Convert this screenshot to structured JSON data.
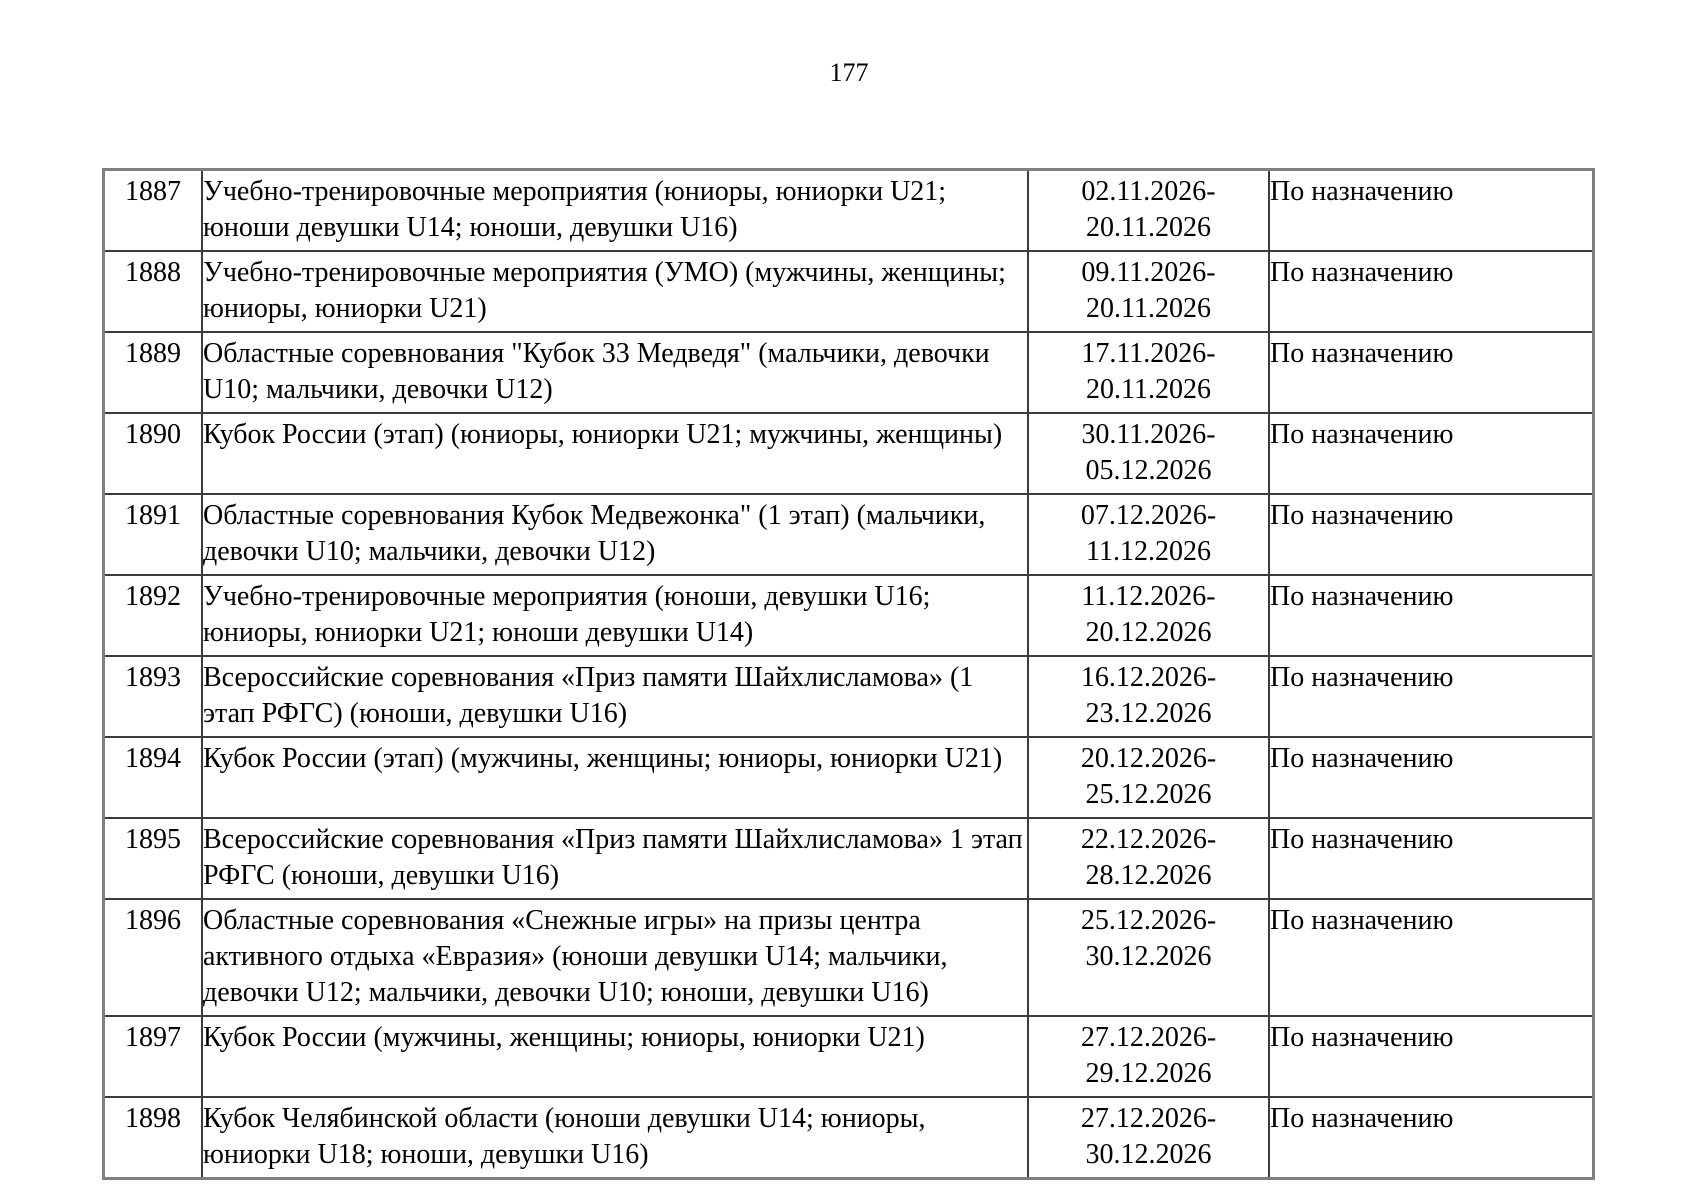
{
  "page": {
    "number": "177"
  },
  "table": {
    "rows": [
      {
        "number": "1887",
        "event": "Учебно-тренировочные мероприятия (юниоры, юниорки U21; юноши девушки U14; юноши, девушки U16)",
        "date_start": "02.11.2026-",
        "date_end": "20.11.2026",
        "location": "По назначению"
      },
      {
        "number": "1888",
        "event": "Учебно-тренировочные мероприятия (УМО) (мужчины, женщины; юниоры, юниорки U21)",
        "date_start": "09.11.2026-",
        "date_end": "20.11.2026",
        "location": "По назначению"
      },
      {
        "number": "1889",
        "event": "Областные соревнования \"Кубок 33 Медведя\" (мальчики, девочки U10; мальчики, девочки U12)",
        "date_start": "17.11.2026-",
        "date_end": "20.11.2026",
        "location": "По назначению"
      },
      {
        "number": "1890",
        "event": "Кубок России (этап) (юниоры, юниорки U21; мужчины, женщины)",
        "date_start": "30.11.2026-",
        "date_end": "05.12.2026",
        "location": "По назначению"
      },
      {
        "number": "1891",
        "event": "Областные соревнования Кубок Медвежонка\" (1 этап) (мальчики, девочки U10; мальчики, девочки U12)",
        "date_start": "07.12.2026-",
        "date_end": "11.12.2026",
        "location": "По назначению"
      },
      {
        "number": "1892",
        "event": "Учебно-тренировочные мероприятия (юноши, девушки U16; юниоры, юниорки U21; юноши девушки U14)",
        "date_start": "11.12.2026-",
        "date_end": "20.12.2026",
        "location": "По назначению"
      },
      {
        "number": "1893",
        "event": "Всероссийские соревнования «Приз памяти Шайхлисламова» (1 этап РФГС) (юноши, девушки U16)",
        "date_start": "16.12.2026-",
        "date_end": "23.12.2026",
        "location": "По назначению"
      },
      {
        "number": "1894",
        "event": "Кубок России (этап) (мужчины, женщины; юниоры, юниорки U21)",
        "date_start": "20.12.2026-",
        "date_end": "25.12.2026",
        "location": "По назначению"
      },
      {
        "number": "1895",
        "event": "Всероссийские соревнования «Приз памяти Шайхлисламова» 1 этап РФГС (юноши, девушки U16)",
        "date_start": "22.12.2026-",
        "date_end": "28.12.2026",
        "location": "По назначению"
      },
      {
        "number": "1896",
        "event": "Областные соревнования «Снежные игры» на призы центра активного отдыха «Евразия» (юноши девушки U14; мальчики, девочки U12; мальчики, девочки U10; юноши, девушки U16)",
        "date_start": "25.12.2026-",
        "date_end": "30.12.2026",
        "location": "По назначению"
      },
      {
        "number": "1897",
        "event": "Кубок России (мужчины, женщины; юниоры, юниорки U21)",
        "date_start": "27.12.2026-",
        "date_end": "29.12.2026",
        "location": "По назначению"
      },
      {
        "number": "1898",
        "event": "Кубок Челябинской области (юноши девушки U14; юниоры, юниорки U18; юноши, девушки U16)",
        "date_start": "27.12.2026-",
        "date_end": "30.12.2026",
        "location": "По назначению"
      }
    ]
  }
}
